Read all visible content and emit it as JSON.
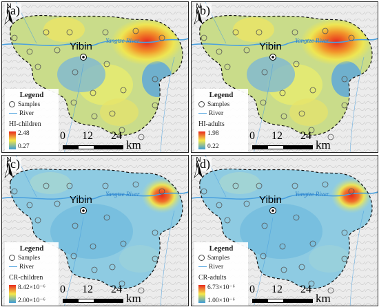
{
  "panels": [
    {
      "label": "(a)",
      "legend_title": "Legend",
      "samples": "Samples",
      "river": "River",
      "layer": "HI-children",
      "max": "2.48",
      "min": "0.27",
      "hotspot": "wide"
    },
    {
      "label": "(b)",
      "legend_title": "Legend",
      "samples": "Samples",
      "river": "River",
      "layer": "HI-adults",
      "max": "1.98",
      "min": "0.22",
      "hotspot": "wide"
    },
    {
      "label": "(c)",
      "legend_title": "Legend",
      "samples": "Samples",
      "river": "River",
      "layer": "CR-children",
      "max": "8.42×10⁻⁶",
      "min": "2.00×10⁻⁶",
      "hotspot": "tight"
    },
    {
      "label": "(d)",
      "legend_title": "Legend",
      "samples": "Samples",
      "river": "River",
      "layer": "CR-adults",
      "max": "6.73×10⁻⁶",
      "min": "1.00×10⁻⁶",
      "hotspot": "tight"
    }
  ],
  "map": {
    "city": "Yibin",
    "river_name": "Yangtze River",
    "north": "N",
    "scale_ticks": [
      "0",
      "12",
      "24"
    ],
    "scale_unit": "km"
  },
  "colors": {
    "high": "#e8281c",
    "mid": "#f4e84a",
    "low": "#3c9ad6",
    "river": "#4aa0de"
  },
  "icons": [
    "north-arrow-icon",
    "city-marker-icon",
    "sample-point-icon"
  ]
}
